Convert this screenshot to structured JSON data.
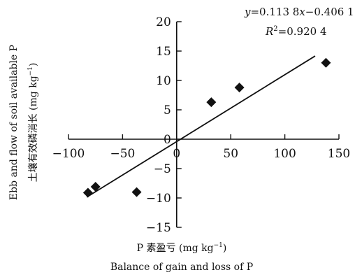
{
  "chart_data": {
    "type": "scatter",
    "x": [
      -82,
      -75,
      -37,
      32,
      58,
      138
    ],
    "y": [
      -9.1,
      -8.1,
      -9.0,
      6.3,
      8.8,
      13.0
    ],
    "fit_line": {
      "slope": 0.1138,
      "intercept": -0.4061,
      "x_range": [
        -83,
        128
      ]
    },
    "equation_parts": {
      "y": "y",
      "eq": "=0.113 8",
      "x": "x",
      "rest": "−0.406 1"
    },
    "r2_parts": {
      "r": "R",
      "sup": "2",
      "rest": "=0.920 4"
    },
    "xlim": [
      -100,
      150
    ],
    "ylim": [
      -15,
      20
    ],
    "x_ticks": [
      -100,
      -50,
      0,
      50,
      100,
      150
    ],
    "x_tick_labels": [
      "−100",
      "−50",
      "0",
      "50",
      "100",
      "150"
    ],
    "y_ticks": [
      -15,
      -10,
      -5,
      0,
      5,
      10,
      15,
      20
    ],
    "y_tick_labels": [
      "−15",
      "−10",
      "−5",
      "0",
      "5",
      "10",
      "15",
      "20"
    ],
    "xlabel_cn": "P 素盈亏 (mg kg",
    "xlabel_cn_sup": "−1",
    "xlabel_cn_end": ")",
    "xlabel_en": "Balance of gain and loss of P",
    "ylabel_en": "Ebb and flow of soil available P",
    "ylabel_cn": "土壤有效磷消长 (mg kg",
    "ylabel_cn_sup": "−1",
    "ylabel_cn_end": ")",
    "marker": "diamond",
    "grid": false
  }
}
